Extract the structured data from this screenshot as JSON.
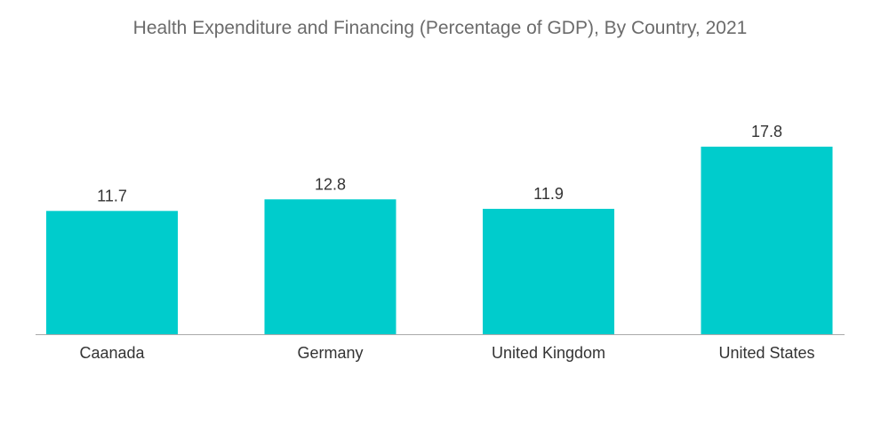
{
  "chart_data": {
    "type": "bar",
    "title": "Health Expenditure and Financing (Percentage of GDP), By Country, 2021",
    "categories": [
      "Caanada",
      "Germany",
      "United Kingdom",
      "United States"
    ],
    "values": [
      11.7,
      12.8,
      11.9,
      17.8
    ],
    "value_labels": [
      "11.7",
      "12.8",
      "11.9",
      "17.8"
    ],
    "xlabel": "",
    "ylabel": "",
    "ylim": [
      0,
      17.8
    ],
    "grid": false,
    "legend": "none",
    "bar_color": "#00cccc",
    "title_color": "#6b6b6b",
    "label_color": "#333333",
    "axis_color": "#aaaaaa"
  }
}
